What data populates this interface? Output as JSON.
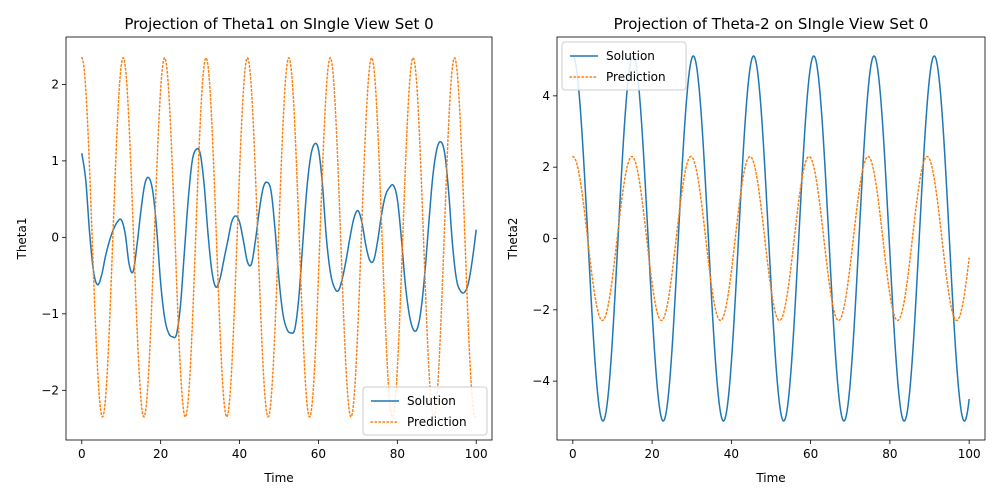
{
  "chart_data": [
    {
      "type": "line",
      "title": "Projection of Theta1 on SIngle View Set 0",
      "xlabel": "Time",
      "ylabel": "Theta1",
      "xlim": [
        -4,
        104
      ],
      "ylim": [
        -2.65,
        2.62
      ],
      "xticks": [
        0,
        20,
        40,
        60,
        80,
        100
      ],
      "yticks": [
        -2,
        -1,
        0,
        1,
        2
      ],
      "grid": false,
      "legend_position": "lower-right",
      "series": [
        {
          "name": "Solution",
          "style": "solid",
          "color": "#1f77b4",
          "x": [
            0,
            1,
            2,
            3,
            4,
            5,
            6,
            7,
            8,
            9,
            10,
            11,
            12,
            13,
            14,
            15,
            16,
            17,
            18,
            19,
            20,
            21,
            22,
            23,
            24,
            25,
            26,
            27,
            28,
            29,
            30,
            31,
            32,
            33,
            34,
            35,
            36,
            37,
            38,
            39,
            40,
            41,
            42,
            43,
            44,
            45,
            46,
            47,
            48,
            49,
            50,
            51,
            52,
            53,
            54,
            55,
            56,
            57,
            58,
            59,
            60,
            61,
            62,
            63,
            64,
            65,
            66,
            67,
            68,
            69,
            70,
            71,
            72,
            73,
            74,
            75,
            76,
            77,
            78,
            79,
            80,
            81,
            82,
            83,
            84,
            85,
            86,
            87,
            88,
            89,
            90,
            91,
            92,
            93,
            94,
            95,
            96,
            97,
            98,
            99,
            100
          ],
          "y": [
            1.1,
            0.75,
            0.05,
            -0.45,
            -0.62,
            -0.5,
            -0.25,
            -0.05,
            0.1,
            0.2,
            0.23,
            0.05,
            -0.35,
            -0.45,
            -0.1,
            0.35,
            0.7,
            0.78,
            0.6,
            0.1,
            -0.6,
            -1.05,
            -1.25,
            -1.3,
            -1.27,
            -0.9,
            -0.2,
            0.5,
            1.0,
            1.15,
            1.1,
            0.7,
            0.05,
            -0.45,
            -0.65,
            -0.55,
            -0.3,
            -0.05,
            0.2,
            0.28,
            0.2,
            -0.05,
            -0.32,
            -0.35,
            -0.05,
            0.35,
            0.65,
            0.72,
            0.6,
            0.1,
            -0.55,
            -1.0,
            -1.2,
            -1.25,
            -1.2,
            -0.8,
            -0.1,
            0.6,
            1.05,
            1.22,
            1.15,
            0.7,
            0.0,
            -0.45,
            -0.65,
            -0.7,
            -0.55,
            -0.3,
            0.0,
            0.25,
            0.35,
            0.2,
            -0.1,
            -0.3,
            -0.3,
            -0.05,
            0.3,
            0.55,
            0.65,
            0.68,
            0.5,
            0.0,
            -0.6,
            -1.0,
            -1.2,
            -1.2,
            -0.95,
            -0.45,
            0.2,
            0.8,
            1.15,
            1.25,
            1.1,
            0.6,
            -0.1,
            -0.55,
            -0.7,
            -0.72,
            -0.6,
            -0.3,
            0.1
          ]
        },
        {
          "name": "Prediction",
          "style": "dotted",
          "color": "#ff7f0e",
          "period": 10.5,
          "amplitude": 2.35,
          "phase_start": 0,
          "x_start": 0,
          "x_end": 100
        }
      ]
    },
    {
      "type": "line",
      "title": "Projection of Theta-2 on SIngle View Set 0",
      "xlabel": "Time",
      "ylabel": "Theta2",
      "xlim": [
        -4,
        104
      ],
      "ylim": [
        -5.65,
        5.65
      ],
      "xticks": [
        0,
        20,
        40,
        60,
        80,
        100
      ],
      "yticks": [
        -4,
        -2,
        0,
        2,
        4
      ],
      "grid": false,
      "legend_position": "upper-left",
      "series": [
        {
          "name": "Solution",
          "style": "solid",
          "color": "#1f77b4",
          "period": 15.2,
          "amplitude": 5.12,
          "phase_start": 0.25,
          "x_start": 0,
          "x_end": 100
        },
        {
          "name": "Prediction",
          "style": "dotted",
          "color": "#ff7f0e",
          "period": 14.9,
          "amplitude": 2.3,
          "phase_start": 0.25,
          "x_start": 0,
          "x_end": 100
        }
      ]
    }
  ]
}
